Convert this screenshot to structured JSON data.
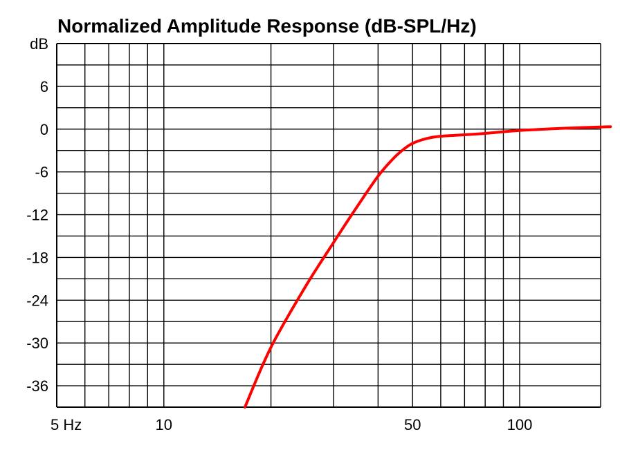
{
  "chart_data": {
    "type": "line",
    "title": "Normalized Amplitude Response (dB-SPL/Hz)",
    "xlabel": "",
    "ylabel": "dB",
    "x_scale": "log",
    "xlim": [
      5,
      180
    ],
    "ylim": [
      -39,
      12
    ],
    "grid": true,
    "y_ticks": [
      {
        "value": 12,
        "label": "dB"
      },
      {
        "value": 6,
        "label": "6"
      },
      {
        "value": 0,
        "label": "0"
      },
      {
        "value": -6,
        "label": "-6"
      },
      {
        "value": -12,
        "label": "-12"
      },
      {
        "value": -18,
        "label": "-18"
      },
      {
        "value": -24,
        "label": "-24"
      },
      {
        "value": -30,
        "label": "-30"
      },
      {
        "value": -36,
        "label": "-36"
      }
    ],
    "y_minor_grid": [
      9,
      3,
      -3,
      -9,
      -15,
      -21,
      -27,
      -33
    ],
    "x_ticks": [
      {
        "value": 5,
        "label": "5 Hz"
      },
      {
        "value": 10,
        "label": "10"
      },
      {
        "value": 50,
        "label": "50"
      },
      {
        "value": 100,
        "label": "100"
      }
    ],
    "x_grid": [
      5,
      6,
      7,
      8,
      9,
      10,
      20,
      30,
      40,
      50,
      60,
      70,
      80,
      90,
      100,
      180
    ],
    "series": [
      {
        "color": "#ff0000",
        "x": [
          16.9,
          20,
          25,
          30,
          35,
          40,
          44,
          47,
          50,
          55,
          60,
          70,
          80,
          100,
          130,
          180
        ],
        "y": [
          -39,
          -30.6,
          -22.1,
          -15.9,
          -10.8,
          -6.6,
          -4.2,
          -2.9,
          -2.0,
          -1.3,
          -1.0,
          -0.8,
          -0.6,
          -0.2,
          0.1,
          0.35
        ]
      }
    ]
  }
}
